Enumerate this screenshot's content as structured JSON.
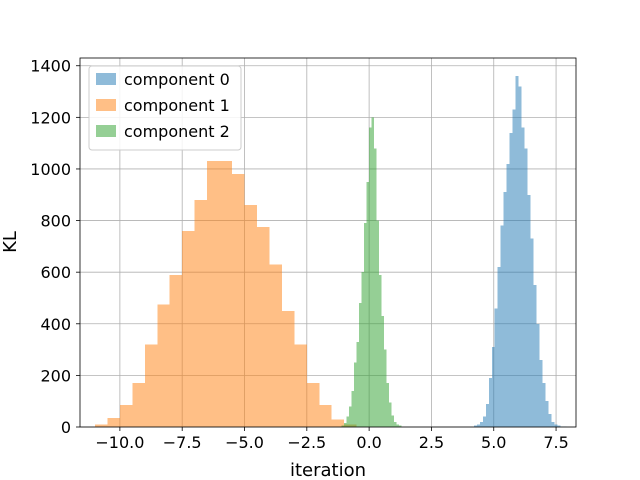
{
  "chart_data": {
    "type": "histogram",
    "xlabel": "iteration",
    "ylabel": "KL",
    "xlim": [
      -11.6,
      8.3
    ],
    "ylim": [
      0,
      1430
    ],
    "xticks": [
      -10.0,
      -7.5,
      -5.0,
      -2.5,
      0.0,
      2.5,
      5.0,
      7.5
    ],
    "xtick_labels": [
      "−10.0",
      "−7.5",
      "−5.0",
      "−2.5",
      "0.0",
      "2.5",
      "5.0",
      "7.5"
    ],
    "yticks": [
      0,
      200,
      400,
      600,
      800,
      1000,
      1200,
      1400
    ],
    "ytick_labels": [
      "0",
      "200",
      "400",
      "600",
      "800",
      "1000",
      "1200",
      "1400"
    ],
    "grid": true,
    "legend_position": "top-left",
    "series": [
      {
        "name": "component 0",
        "color": "#1f77b4",
        "opacity": 0.5,
        "bin_start": 4.2,
        "bin_width": 0.12,
        "values": [
          5,
          10,
          20,
          40,
          90,
          190,
          310,
          460,
          620,
          780,
          910,
          1020,
          1140,
          1230,
          1360,
          1320,
          1160,
          1080,
          900,
          730,
          550,
          400,
          260,
          170,
          100,
          50,
          20,
          10,
          5,
          2,
          1
        ]
      },
      {
        "name": "component 1",
        "color": "#ff7f0e",
        "opacity": 0.5,
        "bin_start": -11.0,
        "bin_width": 0.5,
        "values": [
          10,
          35,
          85,
          170,
          320,
          475,
          590,
          760,
          880,
          1030,
          1030,
          980,
          860,
          775,
          630,
          450,
          320,
          170,
          85,
          30,
          10
        ]
      },
      {
        "name": "component 2",
        "color": "#2ca02c",
        "opacity": 0.5,
        "bin_start": -1.1,
        "bin_width": 0.1,
        "values": [
          5,
          15,
          40,
          80,
          140,
          250,
          330,
          480,
          600,
          790,
          950,
          1160,
          1200,
          1080,
          800,
          590,
          430,
          300,
          170,
          95,
          45,
          20,
          10,
          5
        ]
      }
    ]
  }
}
